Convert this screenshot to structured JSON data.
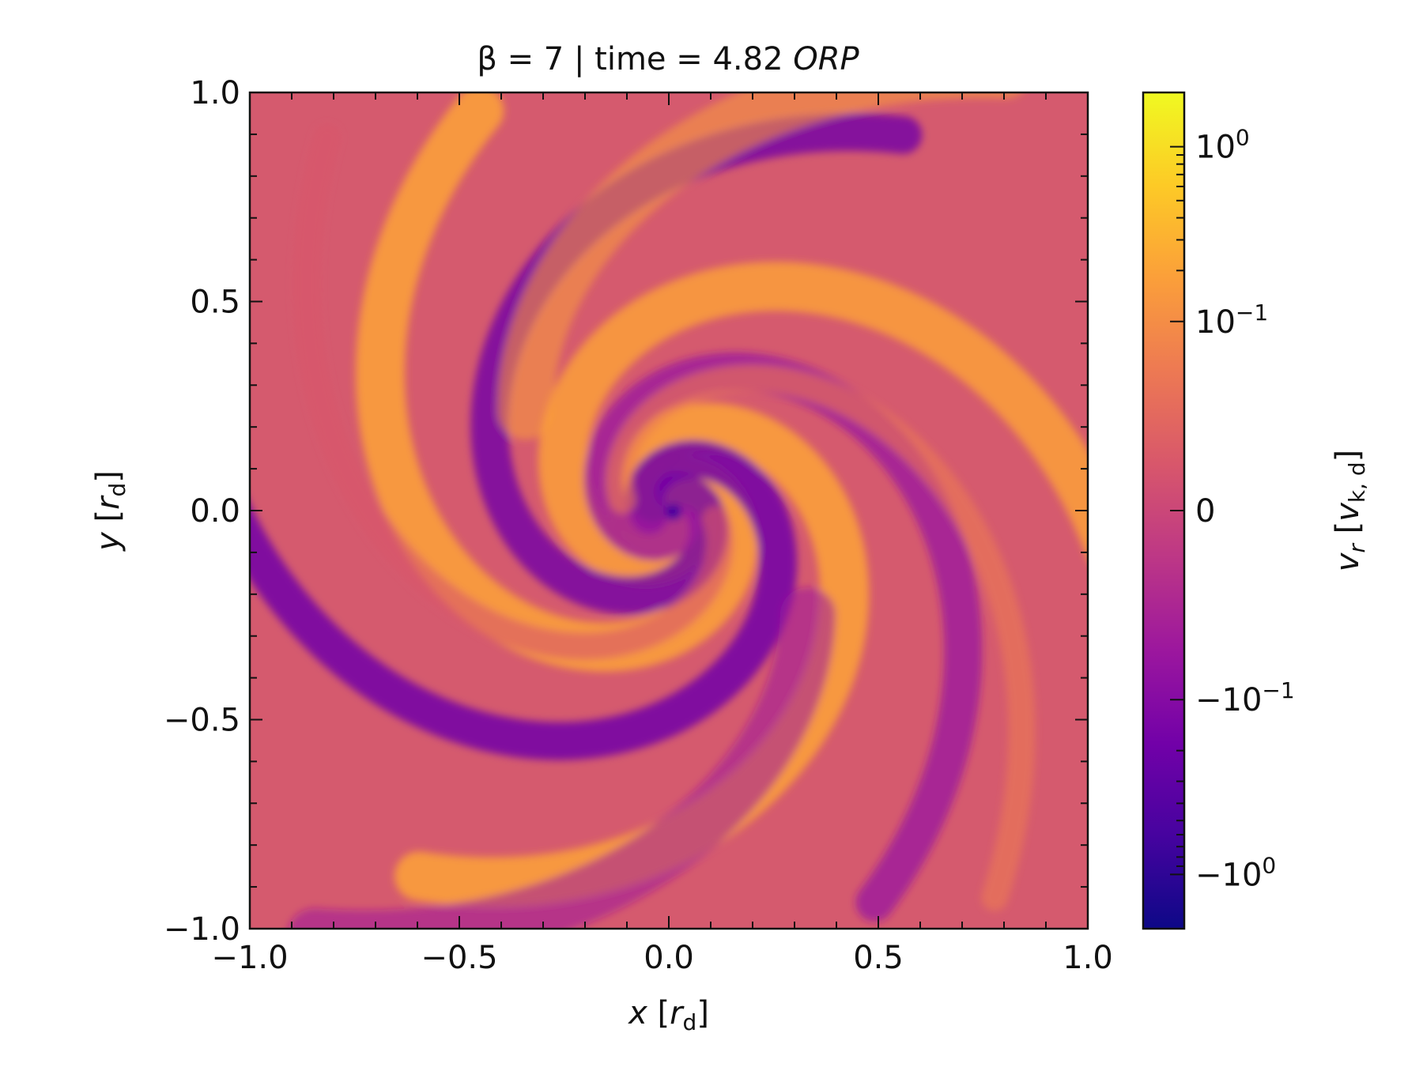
{
  "chart_data": {
    "type": "heatmap",
    "title_parts": [
      "β = 7 | time = 4.82 ",
      "ORP"
    ],
    "xlabel_parts": [
      "x",
      " [",
      "r",
      "d",
      "]"
    ],
    "ylabel_parts": [
      "y",
      " [",
      "r",
      "d",
      "]"
    ],
    "colorbar_label_parts": [
      "v",
      "r",
      " [",
      "v",
      "k, d",
      "]"
    ],
    "xlim": [
      -1.0,
      1.0
    ],
    "ylim": [
      -1.0,
      1.0
    ],
    "xticks": [
      -1.0,
      -0.5,
      0.0,
      0.5,
      1.0
    ],
    "xtick_labels": [
      "−1.0",
      "−0.5",
      "0.0",
      "0.5",
      "1.0"
    ],
    "yticks": [
      -1.0,
      -0.5,
      0.0,
      0.5,
      1.0
    ],
    "ytick_labels": [
      "−1.0",
      "−0.5",
      "0.0",
      "0.5",
      "1.0"
    ],
    "colorbar": {
      "colormap": "plasma",
      "scale": "symlog",
      "linthresh": 0.01,
      "range": [
        -2.0,
        2.0
      ],
      "ticks": [
        {
          "value": 1,
          "base": "10",
          "exp": "0",
          "neg": false
        },
        {
          "value": 0.1,
          "base": "10",
          "exp": "−1",
          "neg": false
        },
        {
          "value": 0,
          "base": "0",
          "exp": "",
          "neg": false
        },
        {
          "value": -0.1,
          "base": "−10",
          "exp": "−1",
          "neg": true
        },
        {
          "value": -1,
          "base": "−10",
          "exp": "0",
          "neg": true
        }
      ]
    },
    "field_description": "radial velocity v_r of a disk, spiral structure of alternating inflow/outflow arms",
    "colors": {
      "cmap": [
        "#0d0887",
        "#46039f",
        "#7201a8",
        "#9c179e",
        "#bd3786",
        "#d8576b",
        "#ed7953",
        "#fb9f3a",
        "#fdca26",
        "#f0f921"
      ]
    }
  }
}
